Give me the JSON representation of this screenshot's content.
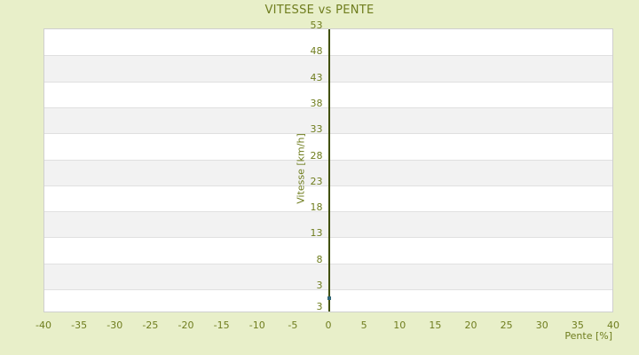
{
  "page": {
    "background_color": "#e8efc9",
    "text_color": "#6f7d1e"
  },
  "chart_data": {
    "type": "scatter",
    "title": "VITESSE vs PENTE",
    "xlabel": "Pente [%]",
    "ylabel": "Vitesse [km/h]",
    "x_ticks": [
      -40,
      -35,
      -30,
      -25,
      -20,
      -15,
      -10,
      -5,
      0,
      5,
      10,
      15,
      20,
      25,
      30,
      35,
      40
    ],
    "y_ticks": [
      53,
      48,
      43,
      38,
      33,
      28,
      23,
      18,
      13,
      8,
      3
    ],
    "y_axis_bottom_label": "3",
    "xlim": [
      -40,
      40
    ],
    "ylim": [
      -1.6,
      53
    ],
    "y_band_step": 5,
    "grid": "alternating-horizontal-bands",
    "legend": "none",
    "points": [
      {
        "x": 0,
        "y": 1.3
      }
    ],
    "colors": {
      "band_light": "#ffffff",
      "band_dark": "#f2f2f2",
      "grid_line": "#e0e0e0",
      "plot_border": "#cfcfcf",
      "zero_axis_line": "#41500a",
      "point": "#2f6577",
      "label_text": "#6f7d1e"
    }
  }
}
